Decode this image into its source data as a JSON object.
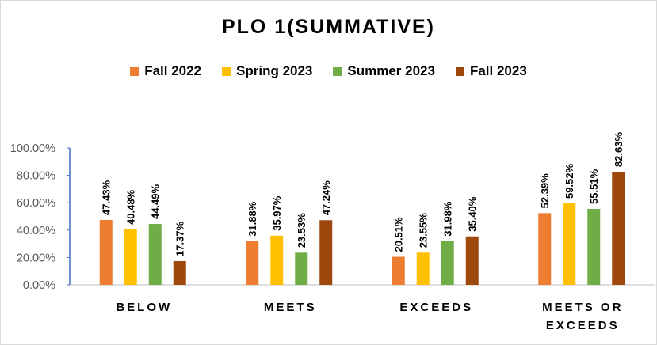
{
  "chart_data": {
    "type": "bar",
    "title": "PLO 1(SUMMATIVE)",
    "xlabel": "",
    "ylabel": "",
    "ylim": [
      0,
      100
    ],
    "yticks": [
      "0.00%",
      "20.00%",
      "40.00%",
      "60.00%",
      "80.00%",
      "100.00%"
    ],
    "categories": [
      [
        "BELOW"
      ],
      [
        "MEETS"
      ],
      [
        "EXCEEDS"
      ],
      [
        "MEETS OR",
        "EXCEEDS"
      ]
    ],
    "legend_position": "top",
    "grid": false,
    "series": [
      {
        "name": "Fall 2022",
        "color": "#ED7D31",
        "values": [
          47.43,
          31.88,
          20.51,
          52.39
        ],
        "labels": [
          "47.43%",
          "31.88%",
          "20.51%",
          "52.39%"
        ]
      },
      {
        "name": "Spring 2023",
        "color": "#FFC000",
        "values": [
          40.48,
          35.97,
          23.55,
          59.52
        ],
        "labels": [
          "40.48%",
          "35.97%",
          "23.55%",
          "59.52%"
        ]
      },
      {
        "name": "Summer 2023",
        "color": "#70AD47",
        "values": [
          44.49,
          23.53,
          31.98,
          55.51
        ],
        "labels": [
          "44.49%",
          "23.53%",
          "31.98%",
          "55.51%"
        ]
      },
      {
        "name": "Fall 2023",
        "color": "#9E480E",
        "values": [
          17.37,
          47.24,
          35.4,
          82.63
        ],
        "labels": [
          "17.37%",
          "47.24%",
          "35.40%",
          "82.63%"
        ]
      }
    ]
  }
}
